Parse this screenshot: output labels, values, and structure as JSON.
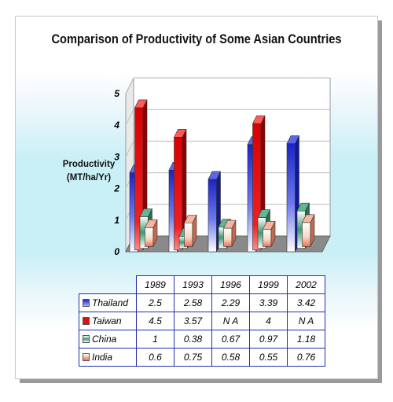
{
  "chart_data": {
    "type": "bar",
    "title": "Comparison of Productivity of Some Asian Countries",
    "ylabel_line1": "Productivity",
    "ylabel_line2": "(MT/ha/Yr)",
    "xlabel": "",
    "ylim": [
      0,
      5
    ],
    "yticks": [
      "0",
      "1",
      "2",
      "3",
      "4",
      "5"
    ],
    "categories": [
      "1989",
      "1993",
      "1996",
      "1999",
      "2002"
    ],
    "series": [
      {
        "name": "Thailand",
        "values": [
          2.5,
          2.58,
          2.29,
          3.39,
          3.42
        ],
        "labels": [
          "2.5",
          "2.58",
          "2.29",
          "3.39",
          "3.42"
        ],
        "color": "#2a36d6"
      },
      {
        "name": "Taiwan",
        "values": [
          4.5,
          3.57,
          null,
          4,
          null
        ],
        "labels": [
          "4.5",
          "3.57",
          "N A",
          "4",
          "N A"
        ],
        "color": "#e01010"
      },
      {
        "name": "China",
        "values": [
          1,
          0.38,
          0.67,
          0.97,
          1.18
        ],
        "labels": [
          "1",
          "0.38",
          "0.67",
          "0.97",
          "1.18"
        ],
        "color": "#3f9a70"
      },
      {
        "name": "India",
        "values": [
          0.6,
          0.75,
          0.58,
          0.55,
          0.76
        ],
        "labels": [
          "0.6",
          "0.75",
          "0.58",
          "0.55",
          "0.76"
        ],
        "color": "#f0866a"
      }
    ],
    "grid": true,
    "legend": "table-below",
    "style": "3d-bar"
  }
}
